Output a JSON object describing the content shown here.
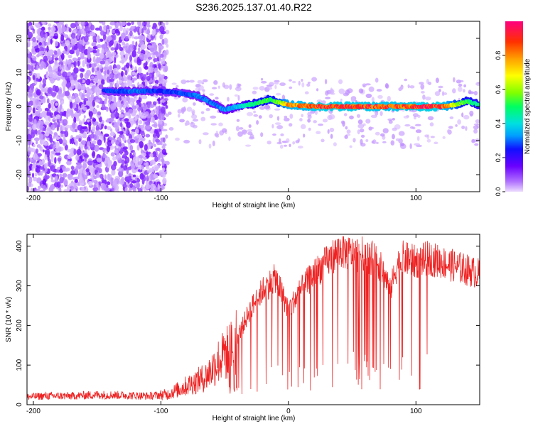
{
  "title": "S236.2025.137.01.40.R22",
  "chart_data": [
    {
      "type": "heatmap",
      "xlabel": "Height of straight line (km)",
      "ylabel": "Frequency (Hz)",
      "xlim": [
        -205,
        150
      ],
      "ylim": [
        -25,
        25
      ],
      "xticks": [
        -200,
        -100,
        0,
        100
      ],
      "yticks": [
        -20,
        -10,
        0,
        10,
        20
      ],
      "colorbar": {
        "label": "Normalized spectral amplitude",
        "range": [
          0,
          1
        ],
        "ticks": [
          "0.0",
          "0.2",
          "0.4",
          "0.6",
          "0.8"
        ],
        "colors": [
          "#e6d2ff",
          "#a05aff",
          "#6a00ff",
          "#1010ff",
          "#00a0ff",
          "#00e0e0",
          "#00ff60",
          "#80ff00",
          "#ffff00",
          "#ffa000",
          "#ff3000",
          "#ff0080"
        ]
      },
      "ridge": {
        "x": [
          -145,
          -120,
          -100,
          -85,
          -70,
          -60,
          -50,
          -40,
          -30,
          -20,
          -15,
          -10,
          0,
          20,
          50,
          80,
          100,
          120,
          130,
          140,
          150
        ],
        "frequency": [
          4.5,
          4.5,
          4.5,
          4,
          3,
          1,
          -1,
          0,
          0.5,
          1.5,
          2,
          1.5,
          0.5,
          0,
          0,
          0,
          0,
          0,
          0.5,
          1.5,
          0.5
        ],
        "amplitude": [
          0.3,
          0.35,
          0.3,
          0.32,
          0.35,
          0.35,
          0.38,
          0.42,
          0.55,
          0.6,
          0.62,
          0.6,
          0.85,
          0.95,
          0.95,
          0.92,
          0.95,
          0.97,
          0.7,
          0.6,
          0.55
        ]
      }
    },
    {
      "type": "line",
      "xlabel": "Height of straight line (km)",
      "ylabel": "SNR (10 * v/v)",
      "xlim": [
        -205,
        150
      ],
      "ylim": [
        0,
        430
      ],
      "xticks": [
        -200,
        -100,
        0,
        100
      ],
      "yticks": [
        0,
        100,
        200,
        300,
        400
      ],
      "series": [
        {
          "color": "#ee2222",
          "x": [
            -205,
            -190,
            -170,
            -150,
            -130,
            -110,
            -95,
            -85,
            -75,
            -65,
            -55,
            -45,
            -40,
            -30,
            -20,
            -10,
            0,
            10,
            20,
            30,
            40,
            50,
            60,
            70,
            75,
            80,
            85,
            90,
            100,
            110,
            120,
            130,
            140,
            150
          ],
          "values": [
            20,
            22,
            22,
            25,
            24,
            22,
            26,
            40,
            55,
            70,
            110,
            140,
            170,
            240,
            290,
            320,
            240,
            290,
            330,
            360,
            390,
            380,
            380,
            360,
            330,
            290,
            350,
            370,
            360,
            370,
            360,
            350,
            340,
            330
          ]
        }
      ]
    }
  ]
}
